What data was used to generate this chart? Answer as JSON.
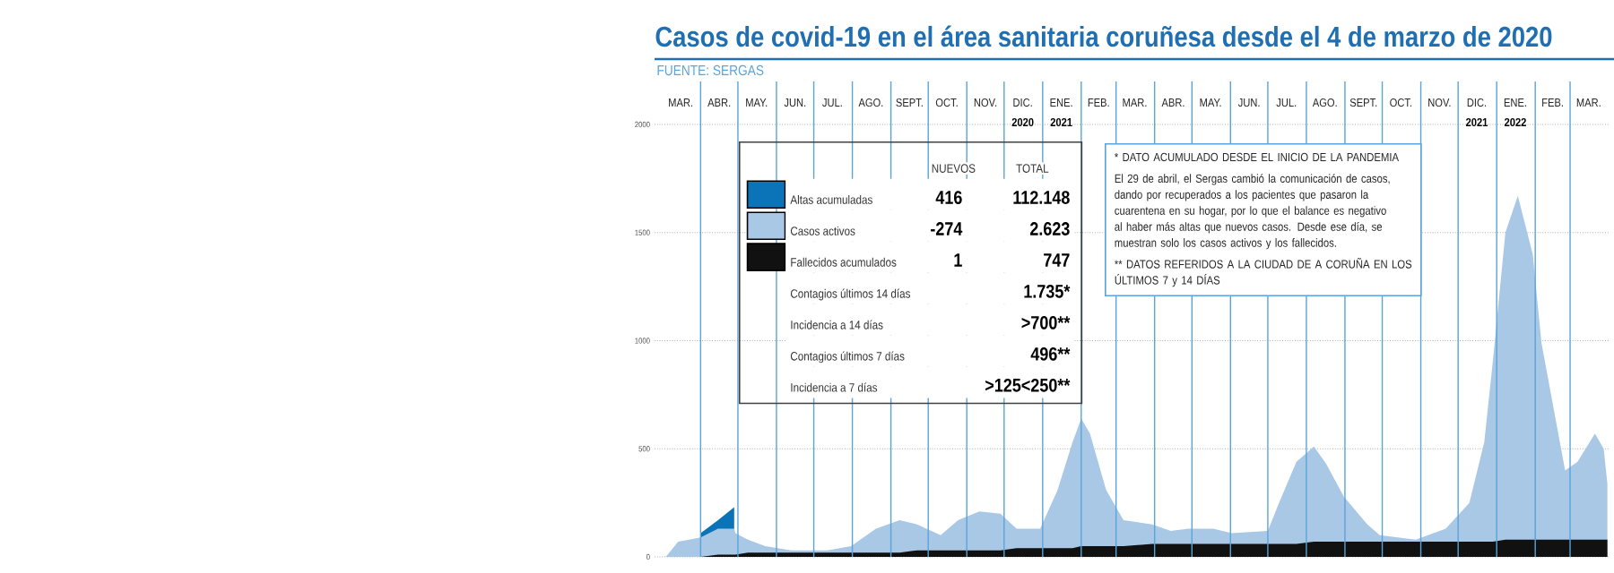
{
  "chart_data": {
    "type": "area",
    "title": "Casos de covid-19 en el área sanitaria coruñesa desde el 4 de marzo de 2020",
    "x": [
      "2020-03-04",
      "2020-03-14",
      "2020-04-01",
      "2020-04-15",
      "2020-04-28",
      "2020-04-29",
      "2020-05-09",
      "2020-05-23",
      "2020-06-13",
      "2020-07-12",
      "2020-07-31",
      "2020-08-20",
      "2020-09-08",
      "2020-09-22",
      "2020-10-11",
      "2020-10-25",
      "2020-11-11",
      "2020-11-28",
      "2020-12-11",
      "2020-12-30",
      "2021-01-13",
      "2021-01-25",
      "2021-02-01",
      "2021-02-08",
      "2021-02-21",
      "2021-03-07",
      "2021-03-30",
      "2021-04-14",
      "2021-04-28",
      "2021-05-18",
      "2021-06-02",
      "2021-07-01",
      "2021-07-10",
      "2021-07-24",
      "2021-08-07",
      "2021-08-17",
      "2021-08-31",
      "2021-09-19",
      "2021-09-29",
      "2021-10-28",
      "2021-11-21",
      "2021-12-10",
      "2021-12-22",
      "2021-12-29",
      "2022-01-08",
      "2022-01-18",
      "2022-01-30",
      "2022-02-06",
      "2022-02-25",
      "2022-03-07",
      "2022-03-21",
      "2022-03-28",
      "2022-03-31"
    ],
    "series": [
      {
        "name": "Altas acumuladas",
        "color": "#0b74b8",
        "values": [
          null,
          null,
          110,
          170,
          230,
          null,
          null,
          null,
          null,
          null,
          null,
          null,
          null,
          null,
          null,
          null,
          null,
          null,
          null,
          null,
          null,
          null,
          null,
          null,
          null,
          null,
          null,
          null,
          null,
          null,
          null,
          null,
          null,
          null,
          null,
          null,
          null,
          null,
          null,
          null,
          null,
          null,
          null,
          null,
          null,
          null,
          null,
          null,
          null,
          null,
          null,
          null,
          null
        ]
      },
      {
        "name": "Casos activos",
        "color": "#a8c8e6",
        "values": [
          0,
          70,
          90,
          130,
          130,
          110,
          80,
          50,
          30,
          30,
          50,
          130,
          170,
          150,
          100,
          170,
          210,
          200,
          130,
          130,
          310,
          530,
          640,
          570,
          310,
          170,
          150,
          120,
          130,
          130,
          110,
          120,
          250,
          440,
          510,
          430,
          280,
          150,
          100,
          80,
          130,
          250,
          530,
          910,
          1500,
          1670,
          1400,
          990,
          400,
          440,
          570,
          500,
          340
        ]
      },
      {
        "name": "Fallecidos acumulados",
        "color": "#111111",
        "values": [
          0,
          0,
          0,
          10,
          10,
          10,
          20,
          20,
          20,
          20,
          20,
          20,
          20,
          30,
          30,
          30,
          30,
          30,
          40,
          40,
          40,
          40,
          50,
          50,
          50,
          50,
          60,
          60,
          60,
          60,
          60,
          60,
          60,
          60,
          70,
          70,
          70,
          70,
          70,
          70,
          70,
          70,
          70,
          70,
          80,
          80,
          80,
          80,
          80,
          80,
          80,
          80,
          80
        ]
      }
    ],
    "xlim": [
      "2020-02-24",
      "2022-04-01"
    ],
    "xticks": [
      {
        "value": "2020-03-16",
        "label": "MAR."
      },
      {
        "value": "2020-04-16",
        "label": "ABR."
      },
      {
        "value": "2020-05-16",
        "label": "MAY."
      },
      {
        "value": "2020-06-16",
        "label": "JUN."
      },
      {
        "value": "2020-07-16",
        "label": "JUL."
      },
      {
        "value": "2020-08-16",
        "label": "AGO."
      },
      {
        "value": "2020-09-16",
        "label": "SEPT."
      },
      {
        "value": "2020-10-16",
        "label": "OCT."
      },
      {
        "value": "2020-11-16",
        "label": "NOV."
      },
      {
        "value": "2020-12-16",
        "label": "DIC."
      },
      {
        "value": "2021-01-16",
        "label": "ENE."
      },
      {
        "value": "2021-02-15",
        "label": "FEB."
      },
      {
        "value": "2021-03-16",
        "label": "MAR."
      },
      {
        "value": "2021-04-16",
        "label": "ABR."
      },
      {
        "value": "2021-05-16",
        "label": "MAY."
      },
      {
        "value": "2021-06-16",
        "label": "JUN."
      },
      {
        "value": "2021-07-16",
        "label": "JUL."
      },
      {
        "value": "2021-08-16",
        "label": "AGO."
      },
      {
        "value": "2021-09-16",
        "label": "SEPT."
      },
      {
        "value": "2021-10-16",
        "label": "OCT."
      },
      {
        "value": "2021-11-16",
        "label": "NOV."
      },
      {
        "value": "2021-12-16",
        "label": "DIC."
      },
      {
        "value": "2022-01-16",
        "label": "ENE."
      },
      {
        "value": "2022-02-15",
        "label": "FEB."
      },
      {
        "value": "2022-03-16",
        "label": "MAR."
      }
    ],
    "x2lim": [
      "2020-02-24",
      "2022-04-01"
    ],
    "x2ticks": [
      {
        "value": "2020-12-16",
        "label": "2020"
      },
      {
        "value": "2021-01-16",
        "label": "2021"
      },
      {
        "value": "2021-12-16",
        "label": "2021"
      },
      {
        "value": "2022-01-16",
        "label": "2022"
      }
    ],
    "ylim": [
      0,
      2000
    ],
    "yticks": [
      0,
      500,
      1000,
      1500,
      2000
    ],
    "grid": "y",
    "legend": "top left",
    "ref_lines": [
      {
        "axis": "x",
        "value": "2020-04-01",
        "color": "#5ba3d9"
      },
      {
        "axis": "x",
        "value": "2020-05-01",
        "color": "#5ba3d9"
      },
      {
        "axis": "x",
        "value": "2020-06-01",
        "color": "#5ba3d9"
      },
      {
        "axis": "x",
        "value": "2020-07-01",
        "color": "#5ba3d9"
      },
      {
        "axis": "x",
        "value": "2020-08-01",
        "color": "#5ba3d9"
      },
      {
        "axis": "x",
        "value": "2020-09-01",
        "color": "#5ba3d9"
      },
      {
        "axis": "x",
        "value": "2020-10-01",
        "color": "#5ba3d9"
      },
      {
        "axis": "x",
        "value": "2020-11-01",
        "color": "#5ba3d9"
      },
      {
        "axis": "x",
        "value": "2020-12-01",
        "color": "#5ba3d9"
      },
      {
        "axis": "x",
        "value": "2021-01-01",
        "color": "#5ba3d9"
      },
      {
        "axis": "x",
        "value": "2021-02-01",
        "color": "#5ba3d9"
      },
      {
        "axis": "x",
        "value": "2021-03-01",
        "color": "#5ba3d9"
      },
      {
        "axis": "x",
        "value": "2021-04-01",
        "color": "#5ba3d9"
      },
      {
        "axis": "x",
        "value": "2021-05-01",
        "color": "#5ba3d9"
      },
      {
        "axis": "x",
        "value": "2021-06-01",
        "color": "#5ba3d9"
      },
      {
        "axis": "x",
        "value": "2021-07-01",
        "color": "#5ba3d9"
      },
      {
        "axis": "x",
        "value": "2021-08-01",
        "color": "#5ba3d9"
      },
      {
        "axis": "x",
        "value": "2021-09-01",
        "color": "#5ba3d9"
      },
      {
        "axis": "x",
        "value": "2021-10-01",
        "color": "#5ba3d9"
      },
      {
        "axis": "x",
        "value": "2021-11-01",
        "color": "#5ba3d9"
      },
      {
        "axis": "x",
        "value": "2021-12-01",
        "color": "#5ba3d9"
      },
      {
        "axis": "x",
        "value": "2022-01-01",
        "color": "#5ba3d9"
      },
      {
        "axis": "x",
        "value": "2022-02-01",
        "color": "#5ba3d9"
      },
      {
        "axis": "x",
        "value": "2022-03-01",
        "color": "#5ba3d9"
      }
    ],
    "annotations": [
      "FUENTE: SERGAS",
      "NUEVOS",
      "TOTAL",
      "416",
      "112.148",
      "-274",
      "2.623",
      "1",
      "747",
      "Contagios últimos 14 días",
      "1.735*",
      "Incidencia a 14 días",
      ">700**",
      "Contagios últimos 7 días",
      "496**",
      "Incidencia a 7 días",
      ">125<250**",
      "* DATO ACUMULADO DESDE EL INICIO DE LA PANDEMIA",
      "El 29 de abril, el Sergas cambió la comunicación de casos, dando por recuperados a los pacientes que pasaron la cuarentena en su hogar, por lo que el balance es negativo al haber más altas que nuevos casos. Desde ese día, se muestran solo los casos activos y los fallecidos.",
      "** DATOS REFERIDOS A LA CIUDAD DE A CORUÑA EN LOS ÚLTIMOS 7 y 14 DÍAS"
    ]
  }
}
